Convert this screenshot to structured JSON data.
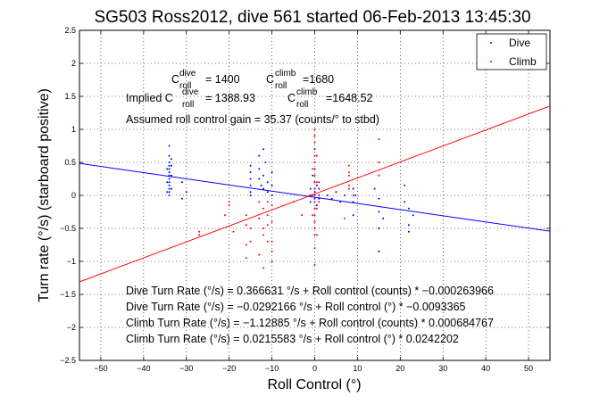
{
  "chart_data": {
    "type": "scatter",
    "title": "SG503 Ross2012, dive 561 started 06-Feb-2013 13:45:30",
    "xlabel": "Roll Control (°)",
    "ylabel": "Turn rate (°/s) (starboard positive)",
    "xlim": [
      -55,
      55
    ],
    "ylim": [
      -2.5,
      2.5
    ],
    "xticks": [
      "−50",
      "−40",
      "−30",
      "−20",
      "−10",
      "0",
      "10",
      "20",
      "30",
      "40",
      "50"
    ],
    "yticks": [
      "−2.5",
      "−2",
      "−1.5",
      "−1",
      "−0.5",
      "0",
      "0.5",
      "1",
      "1.5",
      "2",
      "2.5"
    ],
    "legend": {
      "placement": "top-right",
      "entries": [
        "Dive",
        "Climb"
      ]
    },
    "series": [
      {
        "name": "Dive",
        "color": "#0000ff",
        "points": [
          [
            -34,
            0.75
          ],
          [
            -34,
            0.6
          ],
          [
            -34,
            0.5
          ],
          [
            -34,
            0.45
          ],
          [
            -34,
            0.4
          ],
          [
            -34,
            0.35
          ],
          [
            -34,
            0.3
          ],
          [
            -34,
            0.25
          ],
          [
            -34,
            0.2
          ],
          [
            -34,
            0.15
          ],
          [
            -34,
            0.1
          ],
          [
            -34,
            0.05
          ],
          [
            -34,
            0.0
          ],
          [
            -33.5,
            0.55
          ],
          [
            -34.5,
            0.4
          ],
          [
            -33.5,
            0.3
          ],
          [
            -34.5,
            0.2
          ],
          [
            -33.5,
            0.1
          ],
          [
            -34.5,
            0.05
          ],
          [
            -33.5,
            0.45
          ],
          [
            -31,
            0.2
          ],
          [
            -30,
            0.05
          ],
          [
            -31,
            -0.05
          ],
          [
            -15,
            0.45
          ],
          [
            -15,
            0.35
          ],
          [
            -15,
            0.25
          ],
          [
            -15,
            0.15
          ],
          [
            -15,
            0.05
          ],
          [
            -15,
            0.0
          ],
          [
            -13,
            0.6
          ],
          [
            -13,
            0.4
          ],
          [
            -13,
            0.25
          ],
          [
            -12.5,
            0.15
          ],
          [
            -12,
            0.3
          ],
          [
            -12,
            0.1
          ],
          [
            -11.5,
            0.5
          ],
          [
            -11,
            0.2
          ],
          [
            -11,
            0.05
          ],
          [
            -10,
            0.35
          ],
          [
            -10,
            0.15
          ],
          [
            -10,
            0.0
          ],
          [
            -12,
            0.7
          ],
          [
            -1,
            0.1
          ],
          [
            -1,
            0.0
          ],
          [
            -1,
            -0.1
          ],
          [
            -0.5,
            0.3
          ],
          [
            0,
            0.9
          ],
          [
            0,
            0.7
          ],
          [
            0,
            0.5
          ],
          [
            0,
            0.4
          ],
          [
            0,
            0.3
          ],
          [
            0,
            0.2
          ],
          [
            0,
            0.1
          ],
          [
            0,
            0.05
          ],
          [
            0,
            -0.05
          ],
          [
            0,
            -0.1
          ],
          [
            0,
            -0.2
          ],
          [
            0,
            -0.3
          ],
          [
            0,
            -0.4
          ],
          [
            0.5,
            0.15
          ],
          [
            0.5,
            -0.15
          ],
          [
            1,
            0.0
          ],
          [
            1,
            0.1
          ],
          [
            1,
            -0.05
          ],
          [
            3,
            0.0
          ],
          [
            4,
            -0.05
          ],
          [
            5,
            0.05
          ],
          [
            6,
            -0.1
          ],
          [
            7,
            0.0
          ],
          [
            9,
            0.1
          ],
          [
            9,
            -0.1
          ],
          [
            9,
            -0.3
          ],
          [
            9.5,
            0.0
          ],
          [
            14,
            0.1
          ],
          [
            15,
            -0.05
          ],
          [
            15,
            -0.25
          ],
          [
            15,
            -0.5
          ],
          [
            15,
            -0.85
          ],
          [
            16,
            -0.35
          ],
          [
            21,
            0.15
          ],
          [
            21,
            -0.1
          ],
          [
            22,
            -0.2
          ],
          [
            22,
            -0.45
          ],
          [
            22,
            -0.55
          ],
          [
            23,
            -0.3
          ]
        ]
      },
      {
        "name": "Climb",
        "color": "#ff0000",
        "points": [
          [
            -27,
            -0.55
          ],
          [
            -27,
            -0.6
          ],
          [
            -21,
            -0.3
          ],
          [
            -20,
            -0.1
          ],
          [
            -20,
            -0.15
          ],
          [
            -19,
            -0.55
          ],
          [
            -16,
            -0.3
          ],
          [
            -16,
            -0.45
          ],
          [
            -16,
            -0.75
          ],
          [
            -16,
            -0.95
          ],
          [
            -15,
            -0.5
          ],
          [
            -15,
            -0.7
          ],
          [
            -13,
            -0.1
          ],
          [
            -13,
            -0.35
          ],
          [
            -13,
            -0.9
          ],
          [
            -12,
            -0.2
          ],
          [
            -12,
            -0.5
          ],
          [
            -12,
            -0.6
          ],
          [
            -12,
            -1.1
          ],
          [
            -11,
            -0.1
          ],
          [
            -11,
            -0.3
          ],
          [
            -11,
            -0.45
          ],
          [
            -11,
            -0.7
          ],
          [
            -10,
            -0.15
          ],
          [
            -10,
            -0.4
          ],
          [
            -10,
            -0.7
          ],
          [
            -10,
            -0.85
          ],
          [
            -10,
            -1.0
          ],
          [
            -5,
            -0.1
          ],
          [
            -3,
            -0.3
          ],
          [
            0,
            1.0
          ],
          [
            0,
            0.9
          ],
          [
            0,
            0.8
          ],
          [
            0,
            0.7
          ],
          [
            0,
            0.6
          ],
          [
            0,
            0.5
          ],
          [
            0,
            0.4
          ],
          [
            0,
            0.3
          ],
          [
            0,
            0.2
          ],
          [
            0,
            0.1
          ],
          [
            0,
            0.0
          ],
          [
            0,
            -0.1
          ],
          [
            0,
            -0.2
          ],
          [
            0,
            -0.3
          ],
          [
            0,
            -0.4
          ],
          [
            0,
            -0.5
          ],
          [
            0,
            -0.6
          ],
          [
            0,
            -0.8
          ],
          [
            0,
            -1.05
          ],
          [
            0.5,
            0.6
          ],
          [
            0.5,
            0.2
          ],
          [
            0.5,
            -0.2
          ],
          [
            0.5,
            -0.6
          ],
          [
            -0.5,
            0.4
          ],
          [
            -0.5,
            0.0
          ],
          [
            -0.5,
            -0.3
          ],
          [
            1,
            0.2
          ],
          [
            1,
            -0.1
          ],
          [
            7,
            -0.35
          ],
          [
            8,
            0.1
          ],
          [
            8,
            0.3
          ],
          [
            8,
            0.35
          ],
          [
            8,
            0.45
          ],
          [
            8,
            0.15
          ],
          [
            9,
            0.0
          ],
          [
            15,
            0.3
          ],
          [
            15,
            0.5
          ],
          [
            15,
            0.85
          ]
        ]
      }
    ],
    "fits": [
      {
        "name": "Dive fit",
        "color": "#0000ff",
        "intercept": -0.0292166,
        "slope": -0.0093365
      },
      {
        "name": "Climb fit",
        "color": "#ff0000",
        "intercept": 0.0215583,
        "slope": 0.0242202
      }
    ],
    "annotations": {
      "c_dive_label": "C",
      "c_dive_sup": "dive",
      "c_dive_sub": "roll",
      "c_dive_value": "= 1400",
      "c_climb_label": "C",
      "c_climb_sup": "climb",
      "c_climb_sub": "roll",
      "c_climb_value": "=1680",
      "implied_prefix": "Implied C",
      "implied_dive_sup": "dive",
      "implied_dive_sub": "roll",
      "implied_dive_value": "= 1388.93",
      "implied_climb_label": "C",
      "implied_climb_sup": "climb",
      "implied_climb_sub": "roll",
      "implied_climb_value": "=1648.52",
      "gain": "Assumed roll control gain = 35.37 (counts/° to stbd)",
      "eq1": "Dive Turn Rate (°/s) = 0.366631 °/s + Roll control (counts) * −0.000263966",
      "eq2": "Dive Turn Rate (°/s) = −0.0292166 °/s + Roll control (°) * −0.0093365",
      "eq3": "Climb Turn Rate (°/s) = −1.12885 °/s + Roll control (counts) * 0.000684767",
      "eq4": "Climb Turn Rate (°/s) = 0.0215583 °/s + Roll control (°) * 0.0242202"
    }
  }
}
